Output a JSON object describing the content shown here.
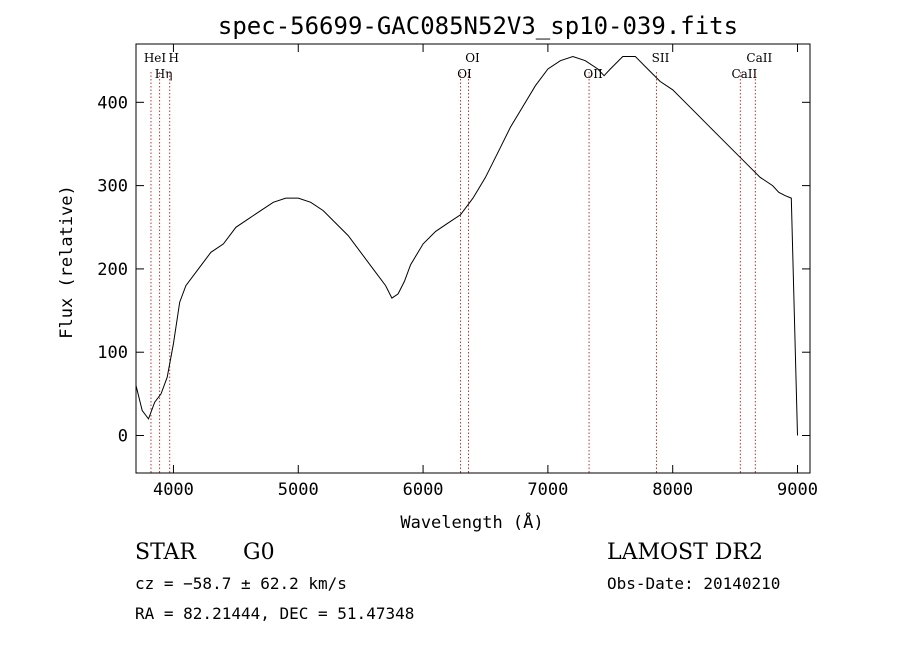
{
  "chart_data": {
    "type": "line",
    "title": "spec-56699-GAC085N52V3_sp10-039.fits",
    "xlabel": "Wavelength (Å)",
    "ylabel": "Flux (relative)",
    "xlim": [
      3700,
      9100
    ],
    "ylim": [
      -45,
      470
    ],
    "xticks": [
      4000,
      5000,
      6000,
      7000,
      8000,
      9000
    ],
    "yticks": [
      0,
      100,
      200,
      300,
      400
    ],
    "series": [
      {
        "x": [
          3700,
          3750,
          3800,
          3850,
          3900,
          3950,
          4000,
          4050,
          4100,
          4200,
          4300,
          4400,
          4500,
          4600,
          4700,
          4800,
          4900,
          5000,
          5100,
          5200,
          5300,
          5400,
          5500,
          5600,
          5700,
          5750,
          5800,
          5850,
          5900,
          6000,
          6100,
          6200,
          6300,
          6400,
          6500,
          6600,
          6700,
          6800,
          6900,
          7000,
          7100,
          7200,
          7300,
          7400,
          7450,
          7500,
          7600,
          7700,
          7800,
          7900,
          8000,
          8100,
          8200,
          8300,
          8400,
          8500,
          8600,
          8700,
          8800,
          8850,
          8900,
          8950,
          9000
        ],
        "y": [
          60,
          30,
          20,
          40,
          50,
          70,
          110,
          160,
          180,
          200,
          220,
          230,
          250,
          260,
          270,
          280,
          285,
          285,
          280,
          270,
          255,
          240,
          220,
          200,
          180,
          165,
          170,
          185,
          205,
          230,
          245,
          255,
          265,
          285,
          310,
          340,
          370,
          395,
          420,
          440,
          450,
          455,
          450,
          440,
          432,
          440,
          455,
          455,
          440,
          425,
          415,
          400,
          385,
          370,
          355,
          340,
          325,
          310,
          300,
          292,
          288,
          285,
          0
        ]
      }
    ],
    "line_markers": [
      {
        "wavelength": 3820,
        "label": "HeI"
      },
      {
        "wavelength": 3889,
        "label": "Hη"
      },
      {
        "wavelength": 3970,
        "label": "H"
      },
      {
        "wavelength": 6300,
        "label": "OI"
      },
      {
        "wavelength": 6364,
        "label": "OI"
      },
      {
        "wavelength": 7330,
        "label": "OII"
      },
      {
        "wavelength": 7870,
        "label": "SII"
      },
      {
        "wavelength": 8542,
        "label": "CaII"
      },
      {
        "wavelength": 8662,
        "label": "CaII"
      }
    ]
  },
  "info": {
    "object_class": "STAR",
    "subclass": "G0",
    "cz": "cz = −58.7 ± 62.2 km/s",
    "coords": "RA =  82.21444, DEC =  51.47348",
    "survey": "LAMOST DR2",
    "obs_date": "Obs-Date: 20140210"
  },
  "colors": {
    "spectrum": "#000000",
    "marker_line": "#c0392b",
    "axis": "#000000"
  }
}
